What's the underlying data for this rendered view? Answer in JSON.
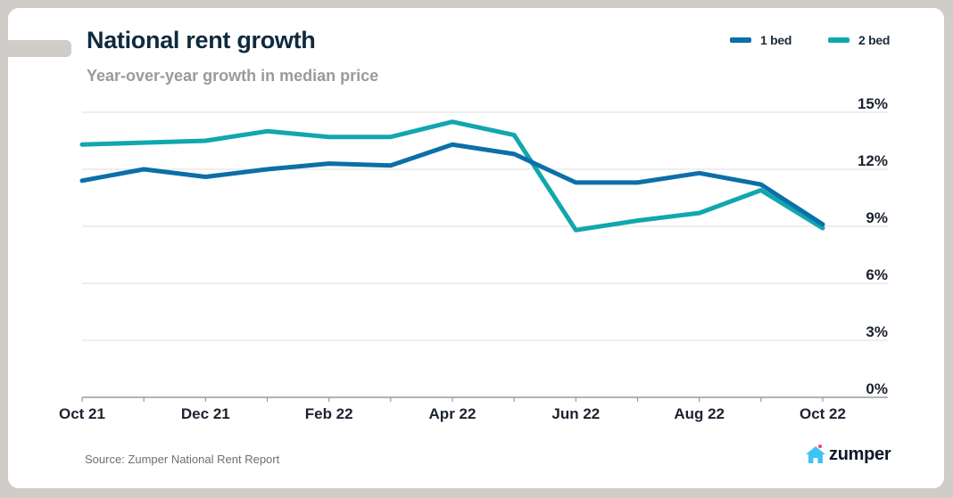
{
  "header": {
    "title": "National rent growth",
    "subtitle": "Year-over-year growth in median price"
  },
  "legend": [
    {
      "label": "1 bed",
      "color": "#0b6fa8"
    },
    {
      "label": "2 bed",
      "color": "#10a7ad"
    }
  ],
  "footer": {
    "source": "Source: Zumper National Rent Report",
    "logo_text": "zumper",
    "logo_icon": "house-icon",
    "logo_color": "#3ec3f5",
    "logo_heart_color": "#f0417b"
  },
  "chart_data": {
    "type": "line",
    "title": "National rent growth",
    "subtitle": "Year-over-year growth in median price",
    "xlabel": "",
    "ylabel": "",
    "x": [
      "Oct 21",
      "Nov 21",
      "Dec 21",
      "Jan 22",
      "Feb 22",
      "Mar 22",
      "Apr 22",
      "May 22",
      "Jun 22",
      "Jul 22",
      "Aug 22",
      "Sep 22",
      "Oct 22"
    ],
    "x_tick_labels": [
      "Oct 21",
      "Dec 21",
      "Feb 22",
      "Apr 22",
      "Jun 22",
      "Aug 22",
      "Oct 22"
    ],
    "y_ticks": [
      0,
      3,
      6,
      9,
      12,
      15
    ],
    "y_tick_labels": [
      "0%",
      "3%",
      "6%",
      "9%",
      "12%",
      "15%"
    ],
    "ylim": [
      0,
      15
    ],
    "y_axis_side": "right",
    "grid": true,
    "legend_position": "top-right",
    "series": [
      {
        "name": "1 bed",
        "color": "#0b6fa8",
        "values": [
          11.4,
          12.0,
          11.6,
          12.0,
          12.3,
          12.2,
          13.3,
          12.8,
          11.3,
          11.3,
          11.8,
          11.2,
          9.1
        ]
      },
      {
        "name": "2 bed",
        "color": "#10a7ad",
        "values": [
          13.3,
          13.4,
          13.5,
          14.0,
          13.7,
          13.7,
          14.5,
          13.8,
          8.8,
          9.3,
          9.7,
          10.9,
          8.9
        ]
      }
    ]
  }
}
